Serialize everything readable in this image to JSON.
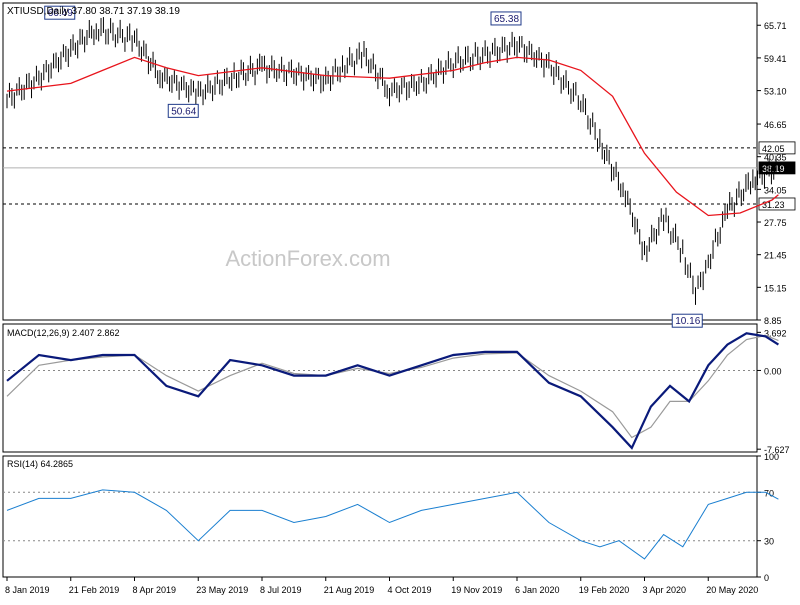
{
  "header": {
    "symbol_label": "XTIUSD,Daily",
    "ohlc_text": "37.80 38.71 37.19 38.19"
  },
  "watermark": "ActionForex.com",
  "colors": {
    "price_bars": "#000000",
    "ma_line": "#e8141c",
    "macd_line": "#0a1a7a",
    "signal_line": "#9a9a9a",
    "rsi_line": "#1a7fd0",
    "level_line": "#000000",
    "tag_border": "#1f3a8a",
    "axis": "#000000"
  },
  "chart_data": [
    {
      "type": "line",
      "title": "XTIUSD,Daily",
      "ylim": [
        8.85,
        70.0
      ],
      "y_ticks": [
        65.71,
        59.41,
        53.1,
        46.65,
        40.35,
        34.05,
        27.75,
        21.45,
        15.15,
        8.85
      ],
      "y_tick_labels": [
        "65.71",
        "59.41",
        "53.10",
        "46.65",
        "40.35",
        "34.05",
        "27.75",
        "21.45",
        "15.15",
        "8.85"
      ],
      "horizontal_levels": [
        {
          "value": 42.05,
          "label": "42.05",
          "style": "dashed"
        },
        {
          "value": 38.19,
          "label": "38.19",
          "style": "solid"
        },
        {
          "value": 31.23,
          "label": "31.23",
          "style": "dashed"
        }
      ],
      "annotations": [
        {
          "date_index": 1,
          "label": "66.49"
        },
        {
          "date_index": 3,
          "label": "50.64"
        },
        {
          "date_index": 8,
          "label": "65.38"
        },
        {
          "date_index": 11,
          "label": "10.16"
        }
      ],
      "x": [
        "8 Jan 2019",
        "21 Feb 2019",
        "8 Apr 2019",
        "23 May 2019",
        "8 Jul 2019",
        "21 Aug 2019",
        "4 Oct 2019",
        "19 Nov 2019",
        "6 Jan 2020",
        "19 Feb 2020",
        "3 Apr 2020",
        "20 May 2020"
      ],
      "series": [
        {
          "style": "ohlc-bars",
          "x": [
            0,
            0.5,
            1,
            1.4,
            2,
            2.4,
            3,
            3.6,
            4,
            4.5,
            5,
            5.3,
            5.6,
            6,
            6.5,
            7,
            7.5,
            8,
            8.5,
            9,
            9.3,
            9.7,
            10,
            10.3,
            10.6,
            10.8,
            11,
            11.3,
            11.7,
            12.1
          ],
          "values": [
            51.5,
            55.5,
            61.0,
            65.0,
            63.0,
            56.0,
            52.5,
            56.0,
            57.5,
            56.5,
            55.0,
            58.0,
            60.0,
            53.0,
            54.5,
            58.5,
            60.0,
            62.0,
            58.0,
            51.0,
            43.0,
            33.0,
            22.0,
            28.5,
            22.0,
            14.0,
            20.0,
            30.0,
            36.0,
            38.19
          ]
        },
        {
          "style": "moving-average",
          "x": [
            0,
            1,
            1.5,
            2,
            2.5,
            3,
            4,
            5,
            6,
            7,
            7.5,
            8,
            8.5,
            9,
            9.5,
            10,
            10.5,
            11,
            11.5,
            12,
            12.1
          ],
          "values": [
            53.0,
            54.5,
            57.0,
            59.5,
            57.5,
            56.0,
            57.5,
            56.0,
            55.5,
            57.0,
            58.5,
            59.5,
            59.0,
            57.0,
            52.0,
            41.0,
            33.5,
            29.0,
            29.5,
            32.0,
            33.0
          ]
        }
      ]
    },
    {
      "type": "line",
      "title": "MACD(12,26,9) 2.407 2.862",
      "ylim": [
        -7.9,
        4.5
      ],
      "y_ticks": [
        3.692,
        0.0,
        -7.627
      ],
      "y_tick_labels": [
        "3.692",
        "0.00",
        "-7.627"
      ],
      "x": [
        "8 Jan 2019",
        "21 Feb 2019",
        "8 Apr 2019",
        "23 May 2019",
        "8 Jul 2019",
        "21 Aug 2019",
        "4 Oct 2019",
        "19 Nov 2019",
        "6 Jan 2020",
        "19 Feb 2020",
        "3 Apr 2020",
        "20 May 2020"
      ],
      "series": [
        {
          "name": "MACD",
          "x": [
            0,
            0.5,
            1,
            1.5,
            2,
            2.5,
            3,
            3.5,
            4,
            4.5,
            5,
            5.5,
            6,
            6.5,
            7,
            7.5,
            8,
            8.5,
            9,
            9.5,
            9.8,
            10.1,
            10.4,
            10.7,
            11,
            11.3,
            11.6,
            11.9,
            12.1
          ],
          "values": [
            -1.0,
            1.5,
            1.0,
            1.5,
            1.5,
            -1.5,
            -2.5,
            1.0,
            0.5,
            -0.5,
            -0.5,
            0.5,
            -0.5,
            0.5,
            1.5,
            1.8,
            1.8,
            -1.2,
            -2.5,
            -5.5,
            -7.5,
            -3.5,
            -1.5,
            -3.0,
            0.5,
            2.5,
            3.6,
            3.3,
            2.5
          ]
        },
        {
          "name": "Signal",
          "x": [
            0,
            0.5,
            1,
            1.5,
            2,
            2.5,
            3,
            3.5,
            4,
            4.5,
            5,
            5.5,
            6,
            6.5,
            7,
            7.5,
            8,
            8.5,
            9,
            9.5,
            9.8,
            10.1,
            10.4,
            10.7,
            11,
            11.3,
            11.6,
            11.9,
            12.1
          ],
          "values": [
            -2.5,
            0.5,
            1.0,
            1.3,
            1.5,
            -0.5,
            -2.0,
            -0.5,
            0.7,
            -0.3,
            -0.5,
            0.2,
            -0.3,
            0.3,
            1.2,
            1.6,
            1.7,
            -0.5,
            -2.0,
            -4.0,
            -6.5,
            -5.5,
            -3.0,
            -3.0,
            -1.0,
            1.5,
            3.0,
            3.4,
            2.9
          ]
        }
      ]
    },
    {
      "type": "line",
      "title": "RSI(14) 64.2865",
      "ylim": [
        0,
        100
      ],
      "y_ticks": [
        100,
        70,
        30,
        0
      ],
      "y_tick_labels": [
        "100",
        "70",
        "30",
        "0"
      ],
      "dashed_levels": [
        70,
        30
      ],
      "x": [
        "8 Jan 2019",
        "21 Feb 2019",
        "8 Apr 2019",
        "23 May 2019",
        "8 Jul 2019",
        "21 Aug 2019",
        "4 Oct 2019",
        "19 Nov 2019",
        "6 Jan 2020",
        "19 Feb 2020",
        "3 Apr 2020",
        "20 May 2020"
      ],
      "series": [
        {
          "name": "RSI",
          "x": [
            0,
            0.5,
            1,
            1.5,
            2,
            2.5,
            3,
            3.5,
            4,
            4.5,
            5,
            5.5,
            6,
            6.5,
            7,
            7.5,
            8,
            8.5,
            9,
            9.3,
            9.6,
            10,
            10.3,
            10.6,
            11,
            11.3,
            11.6,
            11.9,
            12.1
          ],
          "values": [
            55,
            65,
            65,
            72,
            70,
            55,
            30,
            55,
            55,
            45,
            50,
            60,
            45,
            55,
            60,
            65,
            70,
            45,
            30,
            25,
            30,
            15,
            35,
            25,
            60,
            65,
            70,
            70,
            64.3
          ]
        }
      ]
    }
  ]
}
